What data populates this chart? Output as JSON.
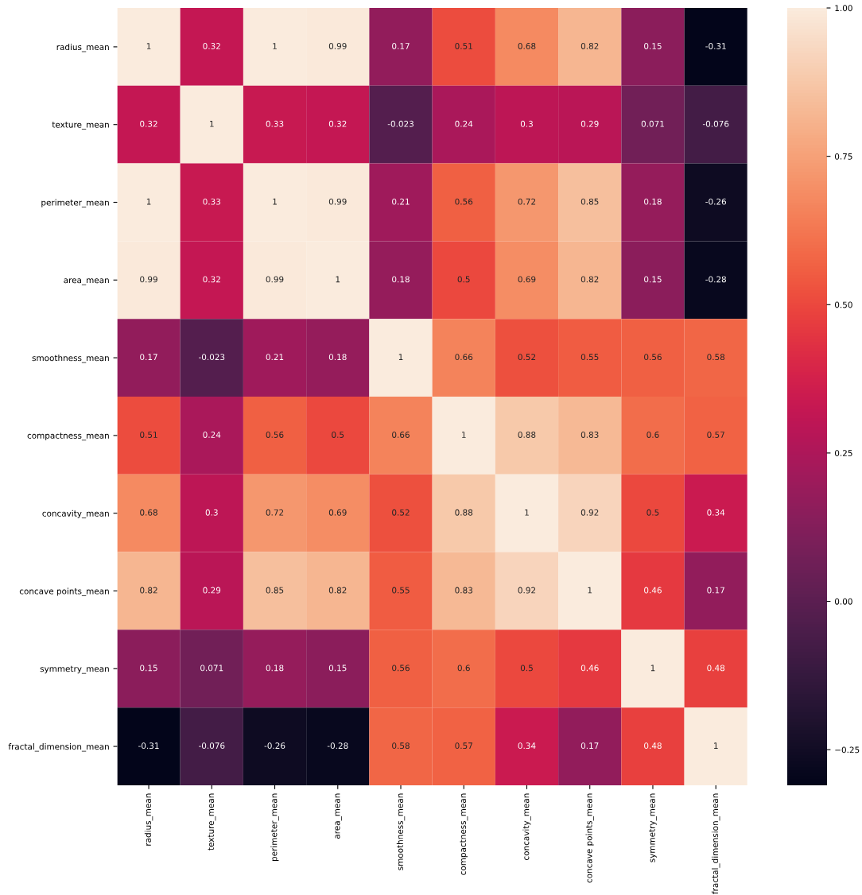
{
  "chart_data": {
    "type": "heatmap",
    "categories": [
      "radius_mean",
      "texture_mean",
      "perimeter_mean",
      "area_mean",
      "smoothness_mean",
      "compactness_mean",
      "concavity_mean",
      "concave points_mean",
      "symmetry_mean",
      "fractal_dimension_mean"
    ],
    "y_categories": [
      "radius_mean",
      "texture_mean",
      "perimeter_mean",
      "area_mean",
      "smoothness_mean",
      "compactness_mean",
      "concavity_mean",
      "concave points_mean",
      "symmetry_mean",
      "fractal_dimension_mean"
    ],
    "cells": [
      [
        1,
        0.32,
        1,
        0.99,
        0.17,
        0.51,
        0.68,
        0.82,
        0.15,
        -0.31
      ],
      [
        0.32,
        1,
        0.33,
        0.32,
        -0.023,
        0.24,
        0.3,
        0.29,
        0.071,
        -0.076
      ],
      [
        1,
        0.33,
        1,
        0.99,
        0.21,
        0.56,
        0.72,
        0.85,
        0.18,
        -0.26
      ],
      [
        0.99,
        0.32,
        0.99,
        1,
        0.18,
        0.5,
        0.69,
        0.82,
        0.15,
        -0.28
      ],
      [
        0.17,
        -0.023,
        0.21,
        0.18,
        1,
        0.66,
        0.52,
        0.55,
        0.56,
        0.58
      ],
      [
        0.51,
        0.24,
        0.56,
        0.5,
        0.66,
        1,
        0.88,
        0.83,
        0.6,
        0.57
      ],
      [
        0.68,
        0.3,
        0.72,
        0.69,
        0.52,
        0.88,
        1,
        0.92,
        0.5,
        0.34
      ],
      [
        0.82,
        0.29,
        0.85,
        0.82,
        0.55,
        0.83,
        0.92,
        1,
        0.46,
        0.17
      ],
      [
        0.15,
        0.071,
        0.18,
        0.15,
        0.56,
        0.6,
        0.5,
        0.46,
        1,
        0.48
      ],
      [
        -0.31,
        -0.076,
        -0.26,
        -0.28,
        0.58,
        0.57,
        0.34,
        0.17,
        0.48,
        1
      ]
    ],
    "data_labels": true,
    "clim": [
      -0.31,
      1
    ],
    "cticks": [
      {
        "value": -0.25,
        "label": "−0.25"
      },
      {
        "value": 0,
        "label": "0.00"
      },
      {
        "value": 0.25,
        "label": "0.25"
      },
      {
        "value": 0.5,
        "label": "0.50"
      },
      {
        "value": 0.75,
        "label": "0.75"
      },
      {
        "value": 1,
        "label": "1.00"
      }
    ]
  }
}
